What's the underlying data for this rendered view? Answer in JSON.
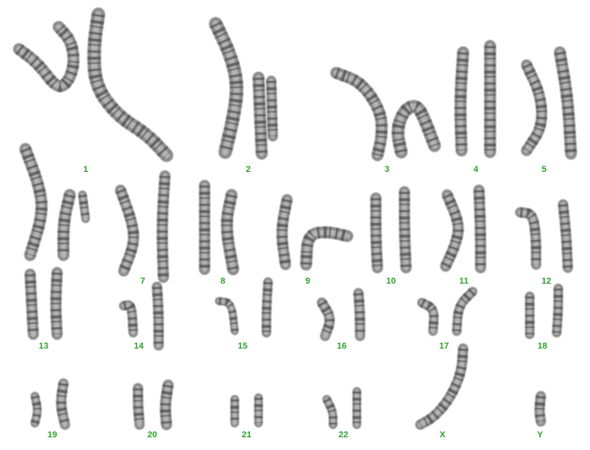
{
  "karyotype": {
    "label_color": "#2ea02e",
    "chromosome_color": "#4a4a4a",
    "pairs": [
      {
        "id": "chr-1",
        "label": "1"
      },
      {
        "id": "chr-2",
        "label": "2"
      },
      {
        "id": "chr-3",
        "label": "3"
      },
      {
        "id": "chr-4",
        "label": "4"
      },
      {
        "id": "chr-5",
        "label": "5"
      },
      {
        "id": "chr-6",
        "label": ""
      },
      {
        "id": "chr-7",
        "label": "7"
      },
      {
        "id": "chr-8",
        "label": "8"
      },
      {
        "id": "chr-9",
        "label": "9"
      },
      {
        "id": "chr-10",
        "label": "10"
      },
      {
        "id": "chr-11",
        "label": "11"
      },
      {
        "id": "chr-12",
        "label": "12"
      },
      {
        "id": "chr-13",
        "label": "13"
      },
      {
        "id": "chr-14",
        "label": "14"
      },
      {
        "id": "chr-15",
        "label": "15"
      },
      {
        "id": "chr-16",
        "label": "16"
      },
      {
        "id": "chr-17",
        "label": "17"
      },
      {
        "id": "chr-18",
        "label": "18"
      },
      {
        "id": "chr-19",
        "label": "19"
      },
      {
        "id": "chr-20",
        "label": "20"
      },
      {
        "id": "chr-21",
        "label": "21"
      },
      {
        "id": "chr-22",
        "label": "22"
      },
      {
        "id": "chr-x",
        "label": "X"
      },
      {
        "id": "chr-y",
        "label": "Y"
      }
    ]
  }
}
